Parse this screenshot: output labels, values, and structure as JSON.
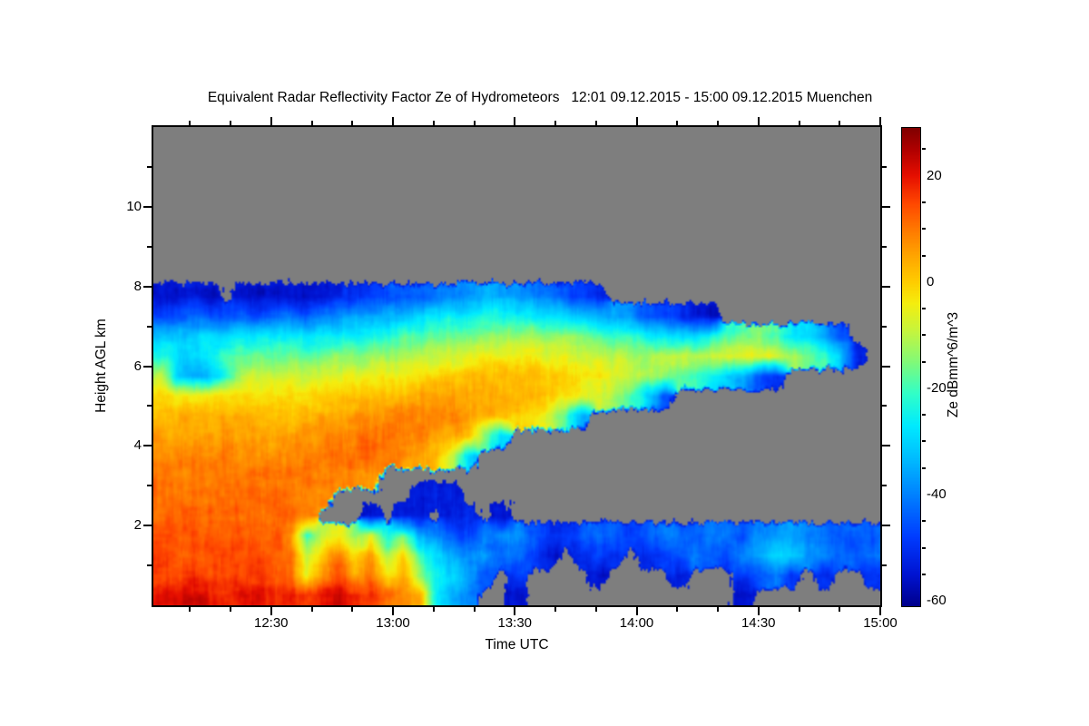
{
  "chart_data": {
    "type": "heatmap",
    "title": "Equivalent Radar Reflectivity Factor Ze of Hydrometeors   12:01 09.12.2015 - 15:00 09.12.2015 Muenchen",
    "xlabel": "Time UTC",
    "ylabel": "Height AGL km",
    "time_start": "12:01",
    "time_end": "15:00",
    "y_range_km": [
      0,
      12
    ],
    "x_major_ticks": [
      {
        "min": 750,
        "label": "12:30"
      },
      {
        "min": 780,
        "label": "13:00"
      },
      {
        "min": 810,
        "label": "13:30"
      },
      {
        "min": 840,
        "label": "14:00"
      },
      {
        "min": 870,
        "label": "14:30"
      },
      {
        "min": 900,
        "label": "15:00"
      }
    ],
    "x_minor_ticks_min": [
      730,
      740,
      760,
      770,
      790,
      800,
      820,
      830,
      850,
      860,
      880,
      890
    ],
    "y_major_ticks_km": [
      2,
      4,
      6,
      8,
      10
    ],
    "y_minor_ticks_km": [
      1,
      3,
      5,
      7,
      9,
      11
    ],
    "value_range": [
      -61,
      29
    ],
    "no_data_color": "#7e7e7e",
    "background": "#ffffff",
    "grid_lines": "off",
    "colorbar": {
      "label": "Ze dBmm^6/m^3",
      "major_ticks": [
        20,
        0,
        -20,
        -40,
        -60
      ],
      "minor_ticks": [
        25,
        15,
        10,
        5,
        -5,
        -10,
        -15,
        -25,
        -30,
        -35,
        -45,
        -50,
        -55
      ]
    },
    "colormap_stops": [
      [
        -61,
        0,
        0,
        140
      ],
      [
        -55,
        0,
        20,
        210
      ],
      [
        -48,
        0,
        60,
        255
      ],
      [
        -40,
        0,
        130,
        255
      ],
      [
        -33,
        0,
        190,
        255
      ],
      [
        -27,
        0,
        235,
        255
      ],
      [
        -21,
        50,
        255,
        200
      ],
      [
        -15,
        130,
        250,
        120
      ],
      [
        -9,
        200,
        245,
        60
      ],
      [
        -4,
        245,
        238,
        15
      ],
      [
        0,
        255,
        205,
        0
      ],
      [
        5,
        255,
        165,
        0
      ],
      [
        10,
        255,
        120,
        0
      ],
      [
        15,
        255,
        70,
        0
      ],
      [
        20,
        230,
        15,
        0
      ],
      [
        25,
        175,
        0,
        0
      ],
      [
        29,
        127,
        0,
        0
      ]
    ],
    "grid": {
      "comment_units": "Ze in dB, null = no echo (gray); rows top-to-bottom from 8 km to 0 km AGL, cols left-to-right from 12:01 to 15:00 UTC",
      "t_start_min": 721,
      "t_end_min": 900,
      "h_top_km": 8,
      "h_bottom_km": 0,
      "cols": 45,
      "rows": 16,
      "values": [
        [
          -56,
          -55,
          -54,
          -56,
          null,
          -55,
          -56,
          -55,
          -55,
          -56,
          -54,
          -52,
          -50,
          -48,
          -46,
          -45,
          -44,
          -42,
          -40,
          -38,
          -36,
          -36,
          -38,
          -40,
          -42,
          -46,
          -48,
          -52,
          null,
          null,
          null,
          null,
          null,
          null,
          null,
          null,
          null,
          null,
          null,
          null,
          null,
          null,
          null,
          null,
          null
        ],
        [
          -48,
          -46,
          -44,
          -45,
          -46,
          -44,
          -45,
          -44,
          -42,
          -44,
          -40,
          -38,
          -36,
          -35,
          -34,
          -32,
          -30,
          -28,
          -26,
          -25,
          -24,
          -24,
          -25,
          -26,
          -28,
          -30,
          -32,
          -34,
          -36,
          -38,
          -45,
          -48,
          -50,
          -54,
          -55,
          null,
          null,
          null,
          null,
          null,
          null,
          null,
          null,
          null,
          null
        ],
        [
          -30,
          -32,
          -30,
          -28,
          -30,
          -28,
          -27,
          -26,
          -26,
          -28,
          -27,
          -26,
          -25,
          -24,
          -22,
          -20,
          -18,
          -17,
          -16,
          -15,
          -14,
          -13,
          -12,
          -12,
          -13,
          -14,
          -16,
          -18,
          -20,
          -22,
          -25,
          -26,
          -28,
          -30,
          -25,
          -20,
          -18,
          -16,
          -18,
          -26,
          -30,
          -35,
          -45,
          null,
          null
        ],
        [
          -22,
          -28,
          -30,
          -26,
          -20,
          -18,
          -17,
          -16,
          -16,
          -18,
          -17,
          -15,
          -14,
          -13,
          -12,
          -11,
          -10,
          -9,
          -8,
          -7,
          -6,
          -5,
          -4,
          -4,
          -5,
          -6,
          -8,
          -9,
          -10,
          -11,
          -12,
          -10,
          -9,
          -10,
          -8,
          -6,
          -5,
          -6,
          -8,
          -12,
          -15,
          -20,
          -30,
          -52,
          null
        ],
        [
          -10,
          -30,
          -35,
          -32,
          -22,
          -10,
          -9,
          -8,
          -7,
          -8,
          -7,
          -6,
          -5,
          -5,
          -4,
          -3,
          -2,
          -1,
          0,
          1,
          2,
          2,
          3,
          2,
          1,
          0,
          -2,
          -4,
          -6,
          -8,
          -12,
          -14,
          -16,
          -20,
          -25,
          -30,
          -35,
          -45,
          -50,
          null,
          null,
          null,
          null,
          null,
          null
        ],
        [
          -2,
          -3,
          -4,
          -3,
          -2,
          -2,
          -2,
          -2,
          -1,
          -2,
          -1,
          0,
          0,
          1,
          2,
          3,
          4,
          4,
          5,
          5,
          5,
          4,
          4,
          2,
          0,
          -2,
          -5,
          -8,
          -12,
          -18,
          -30,
          -45,
          null,
          null,
          null,
          null,
          null,
          null,
          null,
          null,
          null,
          null,
          null,
          null,
          null
        ],
        [
          2,
          2,
          3,
          3,
          3,
          3,
          2,
          2,
          3,
          3,
          4,
          5,
          6,
          7,
          8,
          8,
          8,
          8,
          7,
          6,
          4,
          2,
          0,
          -3,
          -8,
          -20,
          -35,
          null,
          null,
          null,
          null,
          null,
          null,
          null,
          null,
          null,
          null,
          null,
          null,
          null,
          null,
          null,
          null,
          null,
          null
        ],
        [
          5,
          5,
          6,
          6,
          6,
          6,
          5,
          5,
          6,
          7,
          8,
          9,
          10,
          11,
          11,
          9,
          8,
          7,
          5,
          2,
          -15,
          -30,
          null,
          null,
          null,
          null,
          null,
          null,
          null,
          null,
          null,
          null,
          null,
          null,
          null,
          null,
          null,
          null,
          null,
          null,
          null,
          null,
          null,
          null,
          null
        ],
        [
          8,
          8,
          9,
          9,
          9,
          8,
          8,
          8,
          9,
          9,
          10,
          11,
          11,
          12,
          9,
          7,
          5,
          2,
          -10,
          -30,
          null,
          null,
          null,
          null,
          null,
          null,
          null,
          null,
          null,
          null,
          null,
          null,
          null,
          null,
          null,
          null,
          null,
          null,
          null,
          null,
          null,
          null,
          null,
          null,
          null
        ],
        [
          10,
          10,
          10,
          10,
          10,
          10,
          10,
          10,
          10,
          10,
          10,
          9,
          8,
          7,
          null,
          null,
          null,
          null,
          null,
          null,
          null,
          null,
          null,
          null,
          null,
          null,
          null,
          null,
          null,
          null,
          null,
          null,
          null,
          null,
          null,
          null,
          null,
          null,
          null,
          null,
          null,
          null,
          null,
          null,
          null
        ],
        [
          11,
          11,
          11,
          11,
          11,
          11,
          11,
          11,
          11,
          10,
          8,
          null,
          null,
          null,
          null,
          null,
          -54,
          -54,
          -54,
          null,
          null,
          null,
          null,
          null,
          null,
          null,
          null,
          null,
          null,
          null,
          null,
          null,
          null,
          null,
          null,
          null,
          null,
          null,
          null,
          null,
          null,
          null,
          null,
          null,
          null
        ],
        [
          12,
          12,
          12,
          12,
          12,
          12,
          12,
          12,
          11,
          8,
          null,
          null,
          null,
          -54,
          null,
          -54,
          -54,
          null,
          -54,
          -52,
          null,
          -55,
          null,
          null,
          null,
          null,
          null,
          null,
          null,
          null,
          null,
          null,
          null,
          null,
          null,
          null,
          null,
          null,
          null,
          null,
          null,
          null,
          null,
          null,
          null
        ],
        [
          13,
          13,
          13,
          13,
          13,
          13,
          13,
          12,
          8,
          -20,
          -10,
          -5,
          -15,
          -8,
          -25,
          -18,
          -35,
          -40,
          -45,
          -48,
          -42,
          -40,
          -38,
          -44,
          -50,
          -50,
          -45,
          -42,
          -45,
          -48,
          -45,
          -40,
          -42,
          -45,
          -40,
          -42,
          -45,
          -40,
          -38,
          -35,
          -40,
          -42,
          -45,
          -42,
          -44
        ],
        [
          14,
          14,
          14,
          14,
          14,
          14,
          14,
          13,
          10,
          -8,
          2,
          10,
          -2,
          6,
          -12,
          0,
          -22,
          -30,
          -35,
          -40,
          -38,
          -45,
          -42,
          -48,
          -55,
          null,
          -52,
          -48,
          -50,
          null,
          -50,
          -48,
          -45,
          -42,
          -45,
          -48,
          -40,
          -35,
          -28,
          -30,
          -38,
          -40,
          -42,
          -45,
          -42
        ],
        [
          15,
          16,
          16,
          15,
          15,
          16,
          15,
          14,
          12,
          -5,
          8,
          14,
          4,
          10,
          -2,
          6,
          -15,
          -25,
          -30,
          -35,
          -45,
          null,
          -50,
          null,
          null,
          null,
          null,
          -55,
          null,
          null,
          null,
          null,
          -52,
          null,
          null,
          null,
          -50,
          -45,
          -40,
          -48,
          null,
          -50,
          null,
          null,
          -50
        ],
        [
          20,
          21,
          22,
          20,
          19,
          20,
          19,
          18,
          18,
          16,
          20,
          22,
          18,
          16,
          12,
          8,
          4,
          -25,
          -35,
          -40,
          null,
          null,
          -55,
          null,
          null,
          null,
          null,
          null,
          null,
          null,
          null,
          null,
          null,
          null,
          null,
          null,
          -56,
          null,
          null,
          null,
          null,
          null,
          null,
          null,
          null
        ]
      ]
    }
  }
}
